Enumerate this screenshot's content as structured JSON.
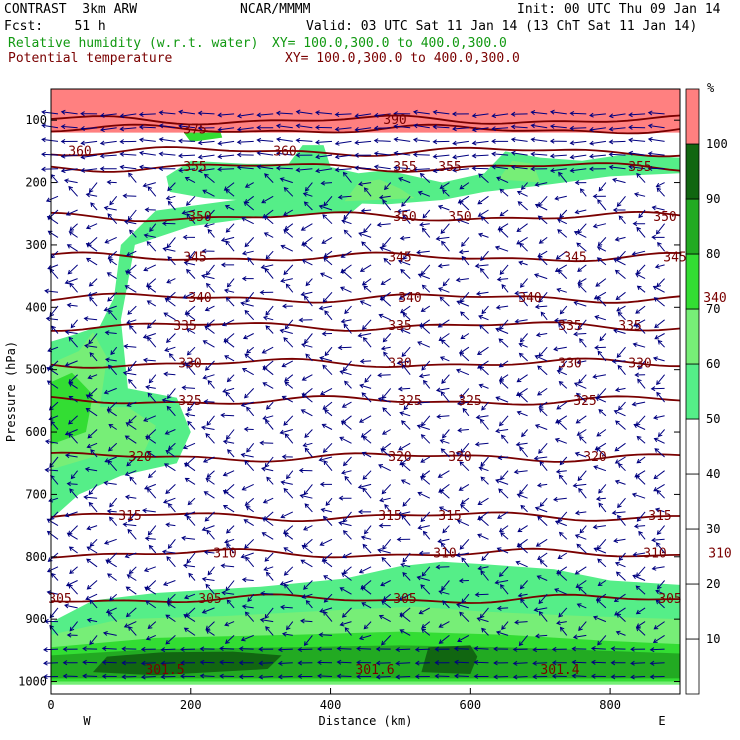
{
  "header": {
    "title": "CONTRAST  3km ARW",
    "org": "NCAR/MMMM",
    "init": "Init: 00 UTC Thu 09 Jan 14",
    "fcst": "Fcst:    51 h",
    "valid": "Valid: 03 UTC Sat 11 Jan 14 (13 ChT Sat 11 Jan 14)",
    "field1_name": "Relative humidity (w.r.t. water)",
    "field1_xy": "XY= 100.0,300.0 to 400.0,300.0",
    "field2_name": "Potential temperature",
    "field2_xy": "XY= 100.0,300.0 to 400.0,300.0"
  },
  "colors": {
    "rh_green": "#119911",
    "theta": "#7a0000",
    "wind": "#000080"
  },
  "chart_data": {
    "type": "cross-section",
    "xlabel": "Distance (km)",
    "ylabel": "Pressure (hPa)",
    "xlim": [
      0,
      900
    ],
    "ylim": [
      1020,
      50
    ],
    "x_ticks": [
      0,
      200,
      400,
      600,
      800
    ],
    "y_ticks": [
      100,
      200,
      300,
      400,
      500,
      600,
      700,
      800,
      900,
      1000
    ],
    "x_end_labels": [
      "W",
      "E"
    ],
    "colorbar": {
      "unit": "%",
      "levels": [
        10,
        20,
        30,
        40,
        50,
        60,
        70,
        80,
        90,
        100
      ],
      "bands": [
        {
          "from": 50,
          "to": 60,
          "color": "#55ee88"
        },
        {
          "from": 60,
          "to": 70,
          "color": "#77ee77"
        },
        {
          "from": 70,
          "to": 80,
          "color": "#33dd33"
        },
        {
          "from": 80,
          "to": 90,
          "color": "#22aa22"
        },
        {
          "from": 90,
          "to": 100,
          "color": "#116611"
        },
        {
          "from": 100,
          "to": 110,
          "color": "#ff8080"
        }
      ]
    },
    "theta_contours": [
      {
        "value": "305",
        "p": 868,
        "labels_x": [
          60,
          210,
          405,
          670
        ]
      },
      {
        "value": "310",
        "p": 795,
        "labels_x": [
          225,
          445,
          655,
          720
        ]
      },
      {
        "value": "315",
        "p": 735,
        "labels_x": [
          130,
          390,
          450,
          660
        ]
      },
      {
        "value": "320",
        "p": 640,
        "labels_x": [
          140,
          400,
          460,
          595
        ]
      },
      {
        "value": "325",
        "p": 550,
        "labels_x": [
          190,
          410,
          470,
          585
        ]
      },
      {
        "value": "330",
        "p": 490,
        "labels_x": [
          190,
          400,
          570,
          640
        ]
      },
      {
        "value": "335",
        "p": 430,
        "labels_x": [
          185,
          400,
          570,
          630
        ]
      },
      {
        "value": "340",
        "p": 385,
        "labels_x": [
          200,
          410,
          530,
          715
        ]
      },
      {
        "value": "345",
        "p": 320,
        "labels_x": [
          195,
          400,
          575,
          675
        ]
      },
      {
        "value": "350",
        "p": 255,
        "labels_x": [
          200,
          405,
          460,
          665
        ]
      },
      {
        "value": "355",
        "p": 175,
        "labels_x": [
          195,
          405,
          450,
          640
        ]
      },
      {
        "value": "360",
        "p": 150,
        "labels_x": [
          80,
          285
        ]
      },
      {
        "value": "375",
        "p": 115,
        "labels_x": [
          195
        ]
      },
      {
        "value": "390",
        "p": 100,
        "labels_x": [
          395
        ]
      }
    ],
    "surface_labels": [
      {
        "text": "301.5",
        "x": 165
      },
      {
        "text": "301.6",
        "x": 375
      },
      {
        "text": "301.4",
        "x": 560
      },
      {
        "text": "301.4",
        "x": 770
      }
    ]
  }
}
